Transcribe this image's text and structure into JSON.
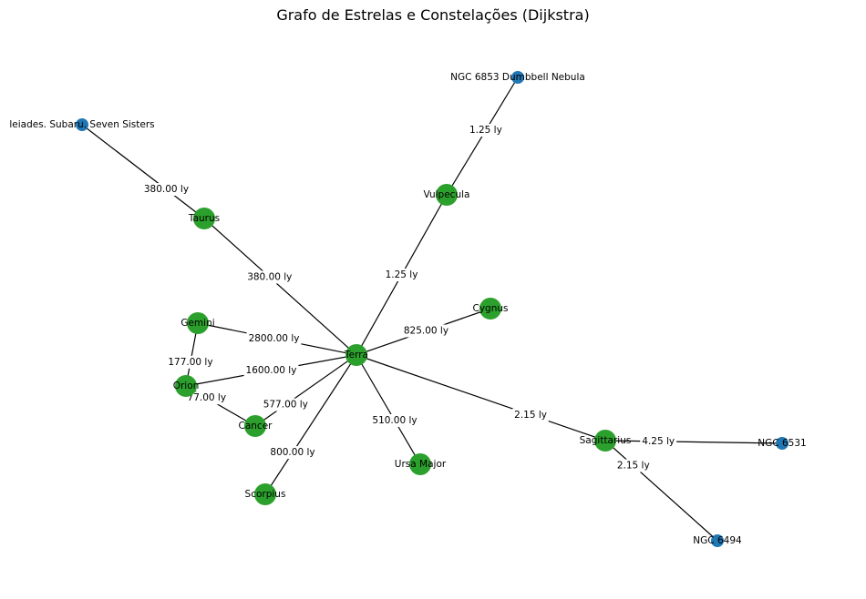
{
  "title": "Grafo de Estrelas e Constelações (Dijkstra)",
  "colors": {
    "constellation": "#2ca02c",
    "object": "#1f77b4",
    "edge": "#000000"
  },
  "nodes": [
    {
      "id": "terra",
      "label": "Terra",
      "kind": "constellation"
    },
    {
      "id": "vulpecula",
      "label": "Vulpecula",
      "kind": "constellation"
    },
    {
      "id": "ngc6853",
      "label": "NGC 6853 Dumbbell Nebula",
      "kind": "object"
    },
    {
      "id": "taurus",
      "label": "Taurus",
      "kind": "constellation"
    },
    {
      "id": "pleiades",
      "label": "leiades. Subaru. Seven Sisters",
      "kind": "object"
    },
    {
      "id": "cygnus",
      "label": "Cygnus",
      "kind": "constellation"
    },
    {
      "id": "gemini",
      "label": "Gemini",
      "kind": "constellation"
    },
    {
      "id": "orion",
      "label": "Orion",
      "kind": "constellation"
    },
    {
      "id": "cancer",
      "label": "Cancer",
      "kind": "constellation"
    },
    {
      "id": "scorpius",
      "label": "Scorpius",
      "kind": "constellation"
    },
    {
      "id": "ursamajor",
      "label": "Ursa Major",
      "kind": "constellation"
    },
    {
      "id": "sagittarius",
      "label": "Sagittarius",
      "kind": "constellation"
    },
    {
      "id": "ngc6531",
      "label": "NGC 6531",
      "kind": "object"
    },
    {
      "id": "ngc6494",
      "label": "NGC 6494",
      "kind": "object"
    }
  ],
  "edges": [
    {
      "source": "terra",
      "target": "vulpecula",
      "label": "1.25 ly"
    },
    {
      "source": "vulpecula",
      "target": "ngc6853",
      "label": "1.25 ly"
    },
    {
      "source": "terra",
      "target": "taurus",
      "label": "380.00 ly"
    },
    {
      "source": "taurus",
      "target": "pleiades",
      "label": "380.00 ly"
    },
    {
      "source": "terra",
      "target": "cygnus",
      "label": "825.00 ly"
    },
    {
      "source": "terra",
      "target": "gemini",
      "label": "2800.00 ly"
    },
    {
      "source": "gemini",
      "target": "orion",
      "label": "177.00 ly"
    },
    {
      "source": "terra",
      "target": "orion",
      "label": "1600.00 ly"
    },
    {
      "source": "orion",
      "target": "cancer",
      "label": "77.00 ly"
    },
    {
      "source": "terra",
      "target": "cancer",
      "label": "577.00 ly"
    },
    {
      "source": "terra",
      "target": "scorpius",
      "label": "800.00 ly"
    },
    {
      "source": "terra",
      "target": "ursamajor",
      "label": "510.00 ly"
    },
    {
      "source": "terra",
      "target": "sagittarius",
      "label": "2.15 ly"
    },
    {
      "source": "sagittarius",
      "target": "ngc6531",
      "label": "4.25 ly"
    },
    {
      "source": "sagittarius",
      "target": "ngc6494",
      "label": "2.15 ly"
    }
  ]
}
